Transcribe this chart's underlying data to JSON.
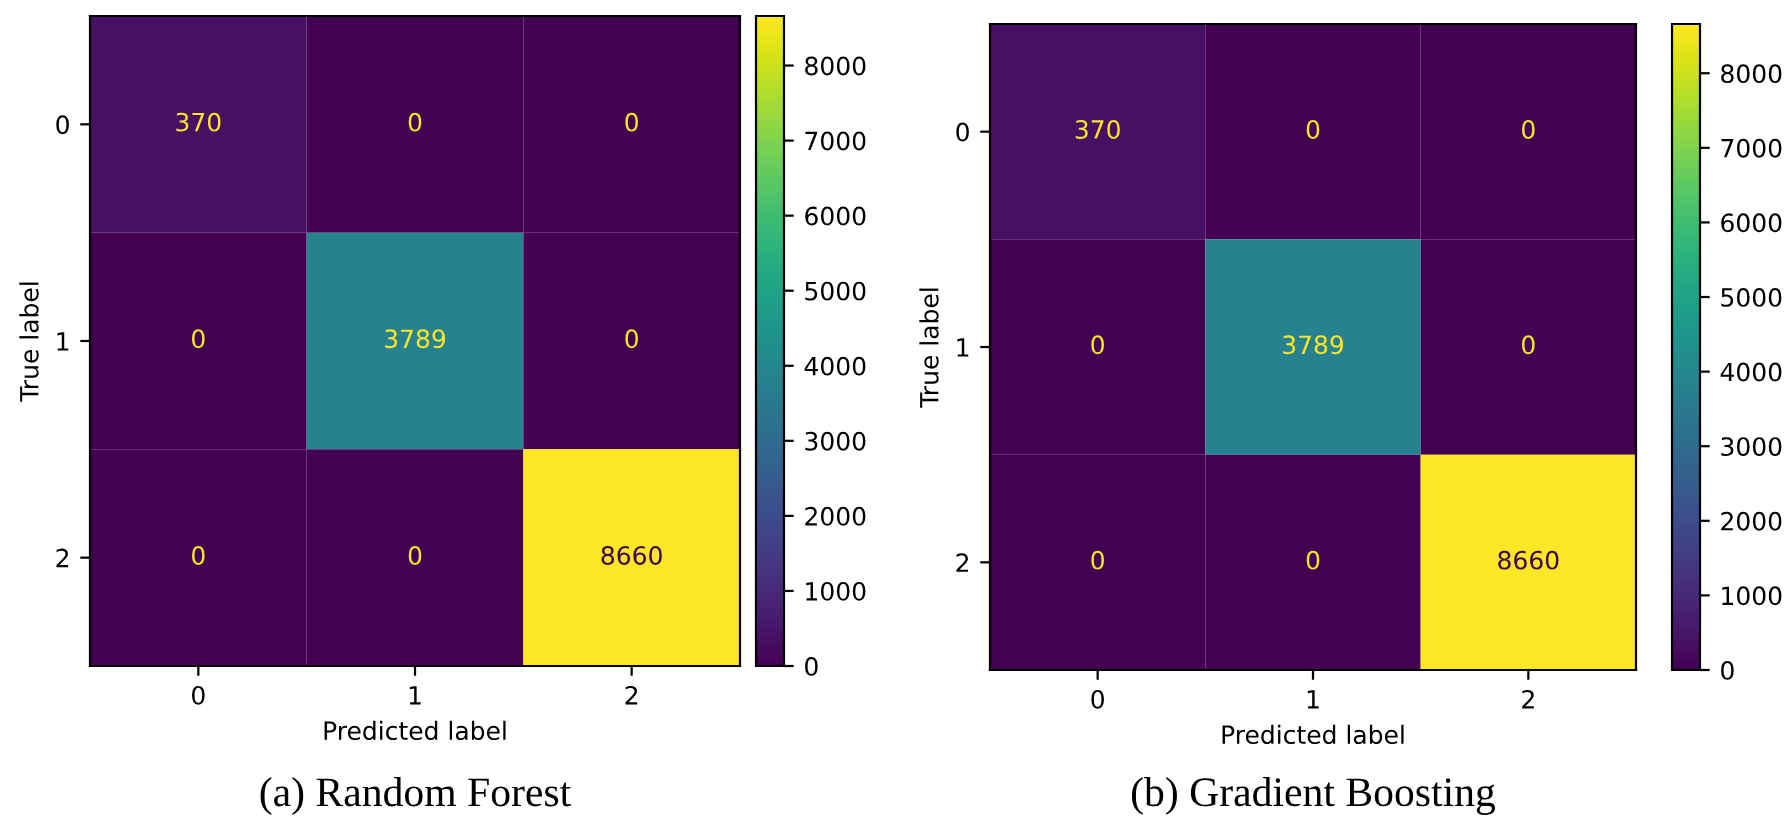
{
  "chart_data": [
    {
      "type": "heatmap",
      "title": "(a) Random Forest",
      "xlabel": "Predicted label",
      "ylabel": "True label",
      "categories": [
        "0",
        "1",
        "2"
      ],
      "y_categories": [
        "0",
        "1",
        "2"
      ],
      "cells": [
        [
          370,
          0,
          0
        ],
        [
          0,
          3789,
          0
        ],
        [
          0,
          0,
          8660
        ]
      ],
      "data_labels": true,
      "clim": [
        0,
        8660
      ],
      "cticks": [
        0,
        1000,
        2000,
        3000,
        4000,
        5000,
        6000,
        7000,
        8000
      ]
    },
    {
      "type": "heatmap",
      "title": "(b) Gradient Boosting",
      "xlabel": "Predicted label",
      "ylabel": "True label",
      "categories": [
        "0",
        "1",
        "2"
      ],
      "y_categories": [
        "0",
        "1",
        "2"
      ],
      "cells": [
        [
          370,
          0,
          0
        ],
        [
          0,
          3789,
          0
        ],
        [
          0,
          0,
          8660
        ]
      ],
      "data_labels": true,
      "clim": [
        0,
        8660
      ],
      "cticks": [
        0,
        1000,
        2000,
        3000,
        4000,
        5000,
        6000,
        7000,
        8000
      ]
    }
  ]
}
